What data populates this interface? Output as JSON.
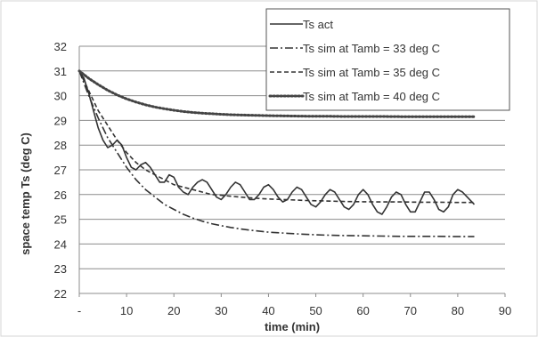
{
  "chart_data": {
    "type": "line",
    "xlabel": "time (min)",
    "ylabel": "space temp Ts (deg C)",
    "xlim": [
      0,
      90
    ],
    "ylim": [
      22,
      32
    ],
    "x_ticks": [
      "-",
      "10",
      "20",
      "30",
      "40",
      "50",
      "60",
      "70",
      "80",
      "90"
    ],
    "y_ticks": [
      "22",
      "23",
      "24",
      "25",
      "26",
      "27",
      "28",
      "29",
      "30",
      "31",
      "32"
    ],
    "grid": "horizontal",
    "legend_position": "top-right",
    "series": [
      {
        "name": "Ts act",
        "style": "solid",
        "color": "#333333",
        "x": [
          0,
          1,
          2,
          3,
          4,
          5,
          6,
          7,
          8,
          9,
          10,
          11,
          12,
          13,
          14,
          15,
          16,
          17,
          18,
          19,
          20,
          21,
          22,
          23,
          24,
          25,
          26,
          27,
          28,
          29,
          30,
          31,
          32,
          33,
          34,
          35,
          36,
          37,
          38,
          39,
          40,
          41,
          42,
          43,
          44,
          45,
          46,
          47,
          48,
          49,
          50,
          51,
          52,
          53,
          54,
          55,
          56,
          57,
          58,
          59,
          60,
          61,
          62,
          63,
          64,
          65,
          66,
          67,
          68,
          69,
          70,
          71,
          72,
          73,
          74,
          75,
          76,
          77,
          78,
          79,
          80,
          81,
          82,
          83,
          83.5
        ],
        "y": [
          31.0,
          30.7,
          30.1,
          29.4,
          28.7,
          28.2,
          27.9,
          28.0,
          28.2,
          28.0,
          27.5,
          27.1,
          27.0,
          27.2,
          27.3,
          27.1,
          26.8,
          26.5,
          26.5,
          26.8,
          26.7,
          26.3,
          26.1,
          26.0,
          26.3,
          26.5,
          26.6,
          26.5,
          26.2,
          25.9,
          25.8,
          26.0,
          26.3,
          26.5,
          26.4,
          26.1,
          25.8,
          25.8,
          26.0,
          26.3,
          26.4,
          26.2,
          25.9,
          25.7,
          25.8,
          26.1,
          26.3,
          26.2,
          25.9,
          25.6,
          25.5,
          25.7,
          26.0,
          26.2,
          26.1,
          25.8,
          25.5,
          25.4,
          25.6,
          26.0,
          26.2,
          26.0,
          25.6,
          25.3,
          25.2,
          25.5,
          25.9,
          26.1,
          26.0,
          25.6,
          25.3,
          25.3,
          25.7,
          26.1,
          26.1,
          25.8,
          25.4,
          25.3,
          25.5,
          26.0,
          26.2,
          26.1,
          25.9,
          25.7,
          25.6
        ]
      },
      {
        "name": "Ts sim at Tamb = 33 deg C",
        "style": "dashdot",
        "color": "#333333",
        "x": [
          0,
          2,
          4,
          6,
          8,
          10,
          12,
          14,
          16,
          18,
          20,
          22,
          24,
          26,
          28,
          30,
          32,
          34,
          36,
          38,
          40,
          44,
          48,
          52,
          56,
          60,
          64,
          68,
          72,
          76,
          80,
          83.5
        ],
        "y": [
          31.0,
          30.0,
          29.1,
          28.3,
          27.7,
          27.1,
          26.6,
          26.2,
          25.9,
          25.6,
          25.4,
          25.2,
          25.05,
          24.92,
          24.82,
          24.74,
          24.67,
          24.61,
          24.56,
          24.52,
          24.48,
          24.43,
          24.39,
          24.36,
          24.34,
          24.33,
          24.32,
          24.31,
          24.31,
          24.31,
          24.3,
          24.3
        ]
      },
      {
        "name": "Ts sim at Tamb = 35 deg C",
        "style": "dashed",
        "color": "#333333",
        "x": [
          0,
          2,
          4,
          6,
          8,
          10,
          12,
          14,
          16,
          18,
          20,
          22,
          24,
          26,
          28,
          30,
          32,
          34,
          36,
          38,
          40,
          44,
          48,
          52,
          56,
          60,
          64,
          68,
          72,
          76,
          80,
          83.5
        ],
        "y": [
          31.0,
          30.2,
          29.4,
          28.8,
          28.2,
          27.7,
          27.3,
          27.0,
          26.8,
          26.6,
          26.4,
          26.3,
          26.2,
          26.1,
          26.0,
          25.97,
          25.93,
          25.9,
          25.87,
          25.84,
          25.82,
          25.79,
          25.76,
          25.74,
          25.72,
          25.71,
          25.7,
          25.7,
          25.69,
          25.69,
          25.68,
          25.68
        ]
      },
      {
        "name": "Ts sim at Tamb = 40 deg C",
        "style": "dotted",
        "color": "#444444",
        "x": [
          0,
          2,
          4,
          6,
          8,
          10,
          12,
          14,
          16,
          18,
          20,
          22,
          24,
          26,
          28,
          30,
          32,
          34,
          36,
          38,
          40,
          44,
          48,
          52,
          56,
          60,
          64,
          68,
          72,
          76,
          80,
          83.5
        ],
        "y": [
          31.0,
          30.7,
          30.45,
          30.22,
          30.03,
          29.87,
          29.74,
          29.63,
          29.54,
          29.47,
          29.41,
          29.36,
          29.32,
          29.29,
          29.27,
          29.25,
          29.23,
          29.22,
          29.21,
          29.2,
          29.19,
          29.18,
          29.17,
          29.17,
          29.16,
          29.16,
          29.16,
          29.15,
          29.15,
          29.15,
          29.15,
          29.15
        ]
      }
    ]
  }
}
